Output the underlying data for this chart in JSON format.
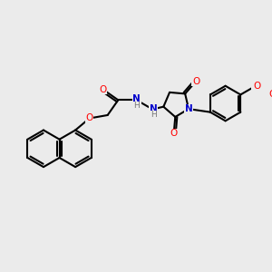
{
  "bg_color": "#ebebeb",
  "bond_color": "#000000",
  "bond_width": 1.5,
  "atom_colors": {
    "O": "#ff0000",
    "N": "#0000cc",
    "H": "#777777"
  },
  "figsize": [
    3.0,
    3.0
  ],
  "dpi": 100
}
